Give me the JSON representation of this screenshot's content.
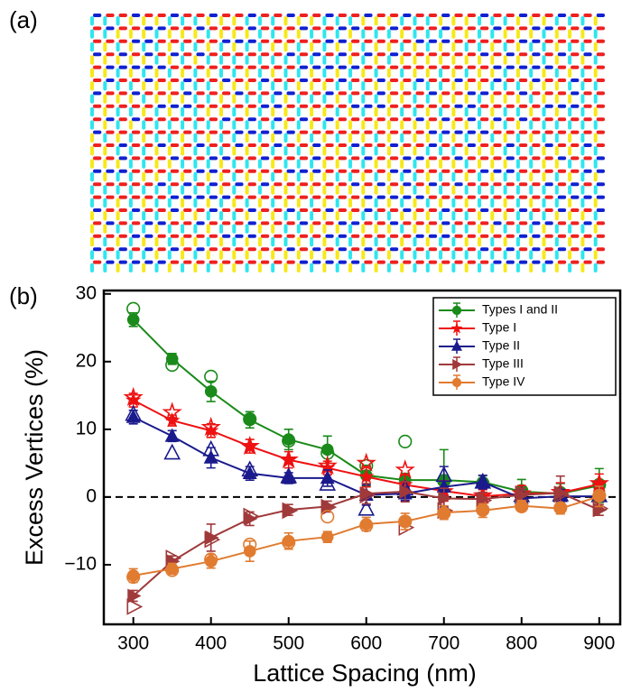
{
  "panel_a_label": "(a)",
  "panel_b_label": "(b)",
  "chart_data": {
    "type": "line",
    "x_label": "Lattice Spacing (nm)",
    "y_label": "Excess Vertices (%)",
    "x": [
      300,
      350,
      400,
      450,
      500,
      550,
      600,
      650,
      700,
      750,
      800,
      850,
      900
    ],
    "xlim": [
      262,
      927
    ],
    "ylim": [
      -18.8,
      30.5
    ],
    "xticks": [
      300,
      400,
      500,
      600,
      700,
      800,
      900
    ],
    "yticks": [
      {
        "value": -10,
        "label": "−10"
      },
      0,
      10,
      20,
      30
    ],
    "reference_line": 0,
    "legend": "upper right",
    "series": [
      {
        "name": "Types I and II",
        "color": "#1a8a1a",
        "marker": "circle",
        "values": [
          26.2,
          20.4,
          15.6,
          11.4,
          8.5,
          7.0,
          3.2,
          2.5,
          2.5,
          2.2,
          0.8,
          0.5,
          1.7
        ],
        "errors": [
          1,
          0.8,
          1.5,
          1.2,
          1.5,
          2,
          1.5,
          1,
          4.5,
          1,
          1.8,
          1.5,
          2.5
        ],
        "hollow_values": [
          27.8,
          19.5,
          17.8,
          11.5,
          8.3,
          6.5,
          4.6,
          8.2,
          2.4,
          2.0,
          0.9,
          0.6,
          1.8
        ]
      },
      {
        "name": "Type I",
        "color": "#ee1111",
        "marker": "star",
        "values": [
          14.3,
          11.3,
          9.8,
          7.5,
          5.5,
          4.3,
          3.0,
          1.8,
          0.9,
          0.1,
          0.5,
          0.6,
          1.9
        ],
        "errors": [
          1,
          0.8,
          1,
          1,
          1.2,
          1,
          1.5,
          1.5,
          1.5,
          1,
          1.2,
          1.5,
          1.5
        ],
        "hollow_values": [
          14.7,
          12.5,
          10.3,
          7.5,
          5.5,
          4.6,
          5.0,
          4.0,
          0.8,
          0.2,
          0.5,
          0.7,
          2.0
        ]
      },
      {
        "name": "Type II",
        "color": "#1a1a8c",
        "marker": "triangle-up",
        "values": [
          11.8,
          9.0,
          5.8,
          3.5,
          2.8,
          2.8,
          0.3,
          0.5,
          1.5,
          2.2,
          -0.2,
          0.1,
          0.1
        ],
        "errors": [
          1,
          0.8,
          1.5,
          1,
          0.8,
          1.2,
          1.5,
          1,
          3,
          1,
          1,
          1,
          1.5
        ],
        "hollow_values": [
          12.2,
          6.5,
          7.0,
          4.0,
          3.0,
          1.9,
          -1.8,
          1.2,
          3.2,
          2.2,
          0.2,
          0.3,
          0.2
        ]
      },
      {
        "name": "Type III",
        "color": "#a0393a",
        "marker": "triangle-right",
        "values": [
          -14.6,
          -9.5,
          -6.0,
          -3.2,
          -1.9,
          -1.4,
          0.5,
          0.8,
          -0.2,
          -0.3,
          0.3,
          0.6,
          -1.9
        ],
        "errors": [
          0.8,
          0.8,
          2,
          1,
          0.8,
          0.8,
          1.5,
          1.5,
          1.5,
          1,
          1,
          2.5,
          0.8
        ],
        "hollow_values": [
          -16.2,
          -9.0,
          -6.3,
          -2.8,
          -2.0,
          -1.5,
          0.3,
          -4.5,
          -2.0,
          -0.5,
          0.5,
          0.4,
          -1.7
        ]
      },
      {
        "name": "Type IV",
        "color": "#e07b30",
        "marker": "circle",
        "values": [
          -11.6,
          -10.6,
          -9.5,
          -8.0,
          -6.5,
          -5.9,
          -4.0,
          -3.6,
          -2.3,
          -2.0,
          -1.3,
          -1.7,
          0.1
        ],
        "errors": [
          1,
          0.8,
          1,
          1.5,
          1.2,
          0.8,
          1,
          1.2,
          1,
          1,
          0.8,
          0.8,
          1.5
        ],
        "hollow_values": [
          -11.8,
          -10.8,
          -9.2,
          -7.0,
          -6.7,
          -2.9,
          -4.2,
          -3.6,
          -2.4,
          -1.9,
          -1.4,
          -1.6,
          0.2
        ]
      }
    ]
  }
}
